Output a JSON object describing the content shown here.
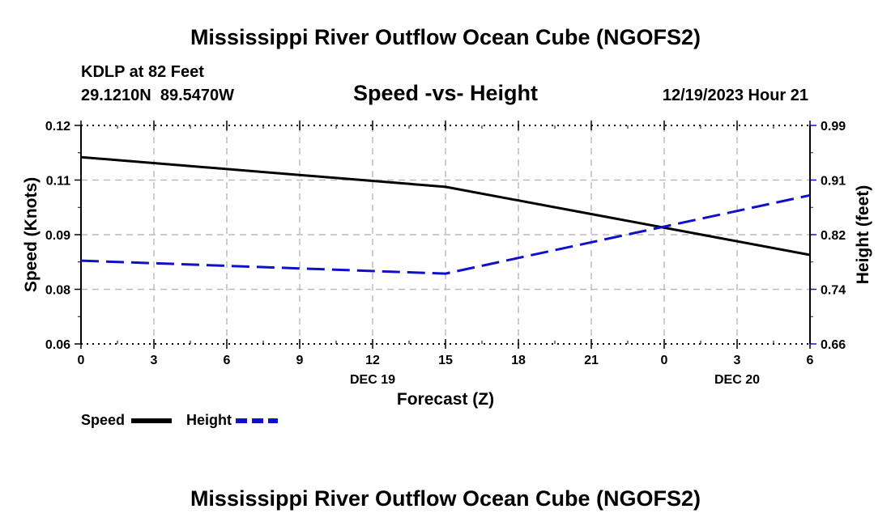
{
  "header": {
    "title": "Mississippi River Outflow Ocean Cube (NGOFS2)",
    "station": "KDLP at 82 Feet",
    "coords": "29.1210N  89.5470W",
    "subtitle": "Speed -vs- Height",
    "datetime": "12/19/2023 Hour 21"
  },
  "footer": {
    "title": "Mississippi River Outflow Ocean Cube (NGOFS2)"
  },
  "legend": {
    "speed_label": "Speed",
    "height_label": "Height"
  },
  "colors": {
    "speed": "#000000",
    "height": "#1010cc",
    "grid": "#bbbbbb"
  },
  "chart_data": {
    "type": "line",
    "title": "Speed -vs- Height",
    "xlabel": "Forecast (Z)",
    "ylabel": "Speed (Knots)",
    "y2label": "Height (feet)",
    "x_hours": [
      0,
      3,
      6,
      9,
      12,
      15,
      18,
      21,
      24,
      27,
      30
    ],
    "x_tick_labels": [
      "0",
      "3",
      "6",
      "9",
      "12",
      "15",
      "18",
      "21",
      "0",
      "3",
      "6"
    ],
    "date_labels": [
      {
        "hour": 12,
        "label": "DEC 19"
      },
      {
        "hour": 27,
        "label": "DEC 20"
      }
    ],
    "xlim": [
      0,
      30
    ],
    "ylim": [
      0.06,
      0.12
    ],
    "y_ticks": [
      0.06,
      0.08,
      0.09,
      0.11,
      0.12
    ],
    "y_tick_labels": [
      "0.06",
      "0.08",
      "0.09",
      "0.11",
      "0.12"
    ],
    "y2lim": [
      0.66,
      0.99
    ],
    "y2_ticks": [
      0.66,
      0.74,
      0.82,
      0.91,
      0.99
    ],
    "y2_tick_labels": [
      "0.66",
      "0.74",
      "0.82",
      "0.91",
      "0.99"
    ],
    "series": [
      {
        "name": "Speed",
        "axis": "left",
        "style": "solid",
        "x": [
          0,
          15,
          30
        ],
        "values": [
          0.1142,
          0.1075,
          0.0863
        ]
      },
      {
        "name": "Height",
        "axis": "right",
        "style": "dashed",
        "x": [
          0,
          15,
          30
        ],
        "values": [
          0.782,
          0.763,
          0.885
        ]
      }
    ]
  }
}
